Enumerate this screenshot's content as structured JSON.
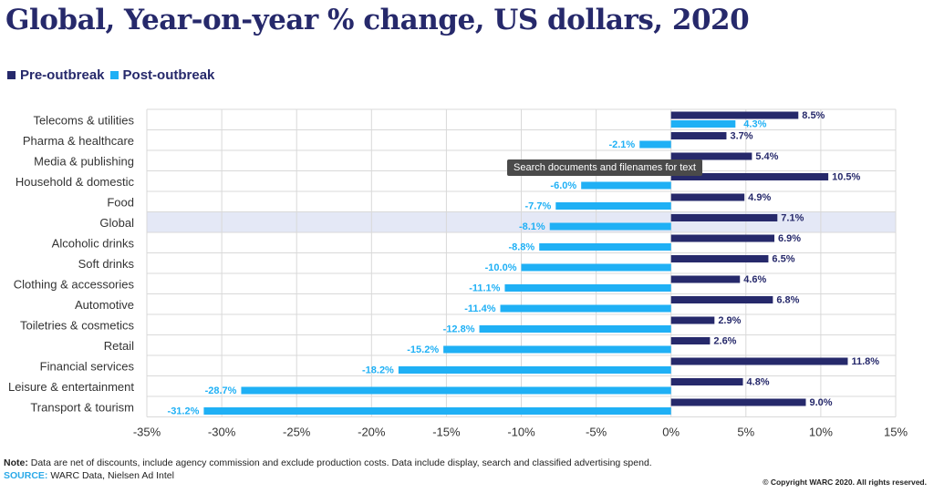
{
  "title": "Global, Year-on-year % change, US dollars, 2020",
  "legend": {
    "pre_label": "Pre-outbreak",
    "post_label": "Post-outbreak"
  },
  "colors": {
    "pre": "#26296b",
    "post": "#1fb0f5",
    "highlight": "#e4e8f6",
    "grid": "#d9d9d9"
  },
  "chart_data": {
    "type": "bar",
    "orientation": "horizontal",
    "categories": [
      "Telecoms & utilities",
      "Pharma & healthcare",
      "Media & publishing",
      "Household & domestic",
      "Food",
      "Global",
      "Alcoholic drinks",
      "Soft drinks",
      "Clothing & accessories",
      "Automotive",
      "Toiletries & cosmetics",
      "Retail",
      "Financial services",
      "Leisure & entertainment",
      "Transport & tourism"
    ],
    "series": [
      {
        "name": "Pre-outbreak",
        "values": [
          8.5,
          3.7,
          5.4,
          10.5,
          4.9,
          7.1,
          6.9,
          6.5,
          4.6,
          6.8,
          2.9,
          2.6,
          11.8,
          4.8,
          9.0
        ]
      },
      {
        "name": "Post-outbreak",
        "values": [
          4.3,
          -2.1,
          null,
          -6.0,
          -7.7,
          -8.1,
          -8.8,
          -10.0,
          -11.1,
          -11.4,
          -12.8,
          -15.2,
          -18.2,
          -28.7,
          -31.2
        ]
      }
    ],
    "data_labels": {
      "Pre-outbreak": [
        "8.5%",
        "3.7%",
        "5.4%",
        "10.5%",
        "4.9%",
        "7.1%",
        "6.9%",
        "6.5%",
        "4.6%",
        "6.8%",
        "2.9%",
        "2.6%",
        "11.8%",
        "4.8%",
        "9.0%"
      ],
      "Post-outbreak": [
        "4.3%",
        "-2.1%",
        "",
        "-6.0%",
        "-7.7%",
        "-8.1%",
        "-8.8%",
        "-10.0%",
        "-11.1%",
        "-11.4%",
        "-12.8%",
        "-15.2%",
        "-18.2%",
        "-28.7%",
        "-31.2%"
      ]
    },
    "xlim": [
      -35,
      15
    ],
    "x_ticks": [
      -35,
      -30,
      -25,
      -20,
      -15,
      -10,
      -5,
      0,
      5,
      10,
      15
    ],
    "x_tick_labels": [
      "-35%",
      "-30%",
      "-25%",
      "-20%",
      "-15%",
      "-10%",
      "-5%",
      "0%",
      "5%",
      "10%",
      "15%"
    ],
    "highlight_category": "Global",
    "grid": true,
    "legend_position": "top-left"
  },
  "tooltip": "Search documents and filenames for text",
  "footer": {
    "note_label": "Note:",
    "note_text": " Data are net of discounts, include agency commission and exclude production costs. Data include display, search and classified advertising spend.",
    "source_label": "SOURCE:",
    "source_text": " WARC Data, Nielsen Ad Intel",
    "copyright": "© Copyright WARC 2020. All rights reserved."
  }
}
